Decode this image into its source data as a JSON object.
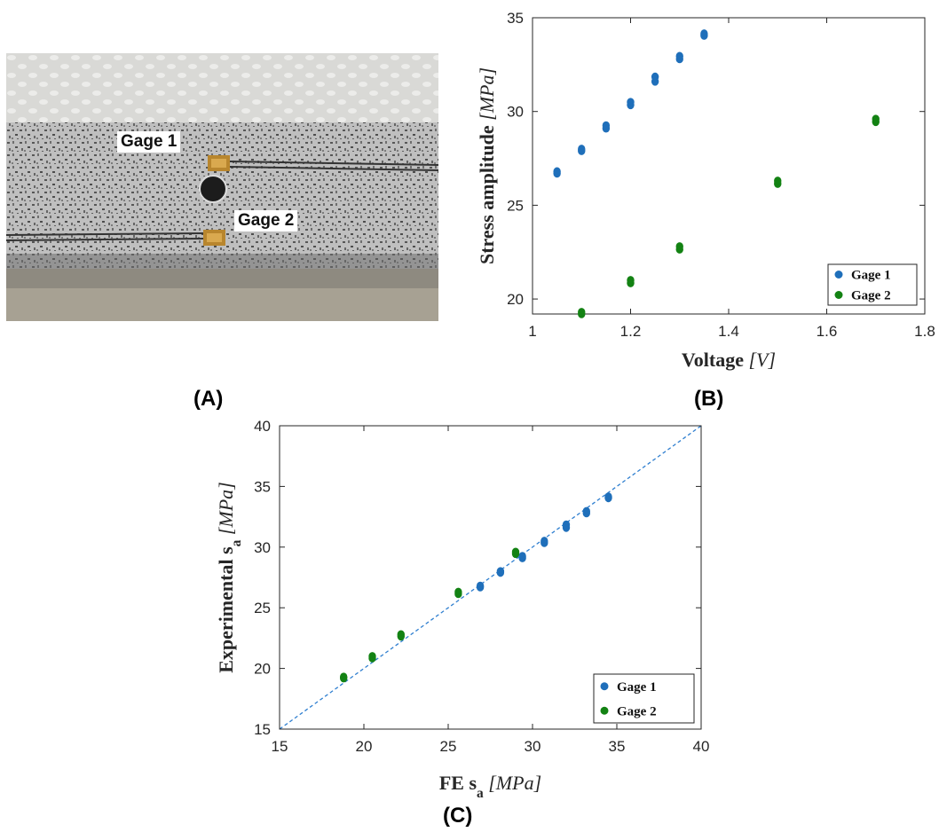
{
  "panel_labels": {
    "a": "(A)",
    "b": "(B)",
    "c": "(C)"
  },
  "photo": {
    "gage1_label": "Gage 1",
    "gage2_label": "Gage 2"
  },
  "colors": {
    "gage1": "#1f6fba",
    "gage2": "#138213",
    "fit_line": "#2f7fd0"
  },
  "chart_data": [
    {
      "id": "B",
      "type": "scatter",
      "xlabel": "Voltage",
      "xlabel_unit": "[V]",
      "ylabel": "Stress amplitude",
      "ylabel_unit": "[MPa]",
      "xlim": [
        1,
        1.8
      ],
      "ylim": [
        19.2,
        35
      ],
      "xticks": [
        "1",
        "1.2",
        "1.4",
        "1.6",
        "1.8"
      ],
      "yticks": [
        "20",
        "25",
        "30",
        "35"
      ],
      "grid": false,
      "legend_position": "bottom-right",
      "series": [
        {
          "name": "Gage 1",
          "points": [
            [
              1.05,
              26.7
            ],
            [
              1.05,
              26.8
            ],
            [
              1.1,
              27.9
            ],
            [
              1.1,
              28.0
            ],
            [
              1.15,
              29.1
            ],
            [
              1.15,
              29.25
            ],
            [
              1.2,
              30.35
            ],
            [
              1.2,
              30.5
            ],
            [
              1.25,
              31.6
            ],
            [
              1.25,
              31.85
            ],
            [
              1.3,
              32.8
            ],
            [
              1.3,
              32.95
            ],
            [
              1.35,
              34.05
            ],
            [
              1.35,
              34.15
            ]
          ]
        },
        {
          "name": "Gage 2",
          "points": [
            [
              1.1,
              19.2
            ],
            [
              1.1,
              19.3
            ],
            [
              1.2,
              20.85
            ],
            [
              1.2,
              21.0
            ],
            [
              1.3,
              22.65
            ],
            [
              1.3,
              22.8
            ],
            [
              1.5,
              26.15
            ],
            [
              1.5,
              26.3
            ],
            [
              1.7,
              29.45
            ],
            [
              1.7,
              29.6
            ]
          ]
        }
      ]
    },
    {
      "id": "C",
      "type": "scatter",
      "xlabel": "FE sa",
      "xlabel_unit": "[MPa]",
      "ylabel": "Experimental sa",
      "ylabel_unit": "[MPa]",
      "xlim": [
        15,
        40
      ],
      "ylim": [
        15,
        40
      ],
      "xticks": [
        "15",
        "20",
        "25",
        "30",
        "35",
        "40"
      ],
      "yticks": [
        "15",
        "20",
        "25",
        "30",
        "35",
        "40"
      ],
      "grid": false,
      "legend_position": "bottom-right",
      "reference_line": "y = x (dashed)",
      "series": [
        {
          "name": "Gage 1",
          "points": [
            [
              26.9,
              26.7
            ],
            [
              26.9,
              26.8
            ],
            [
              28.1,
              27.9
            ],
            [
              28.1,
              28.0
            ],
            [
              29.4,
              29.1
            ],
            [
              29.4,
              29.25
            ],
            [
              30.7,
              30.35
            ],
            [
              30.7,
              30.5
            ],
            [
              32.0,
              31.6
            ],
            [
              32.0,
              31.85
            ],
            [
              33.2,
              32.8
            ],
            [
              33.2,
              32.95
            ],
            [
              34.5,
              34.05
            ],
            [
              34.5,
              34.15
            ]
          ]
        },
        {
          "name": "Gage 2",
          "points": [
            [
              18.8,
              19.2
            ],
            [
              18.8,
              19.3
            ],
            [
              20.5,
              20.85
            ],
            [
              20.5,
              21.0
            ],
            [
              22.2,
              22.65
            ],
            [
              22.2,
              22.8
            ],
            [
              25.6,
              26.15
            ],
            [
              25.6,
              26.3
            ],
            [
              29.0,
              29.45
            ],
            [
              29.0,
              29.6
            ]
          ]
        }
      ]
    }
  ]
}
